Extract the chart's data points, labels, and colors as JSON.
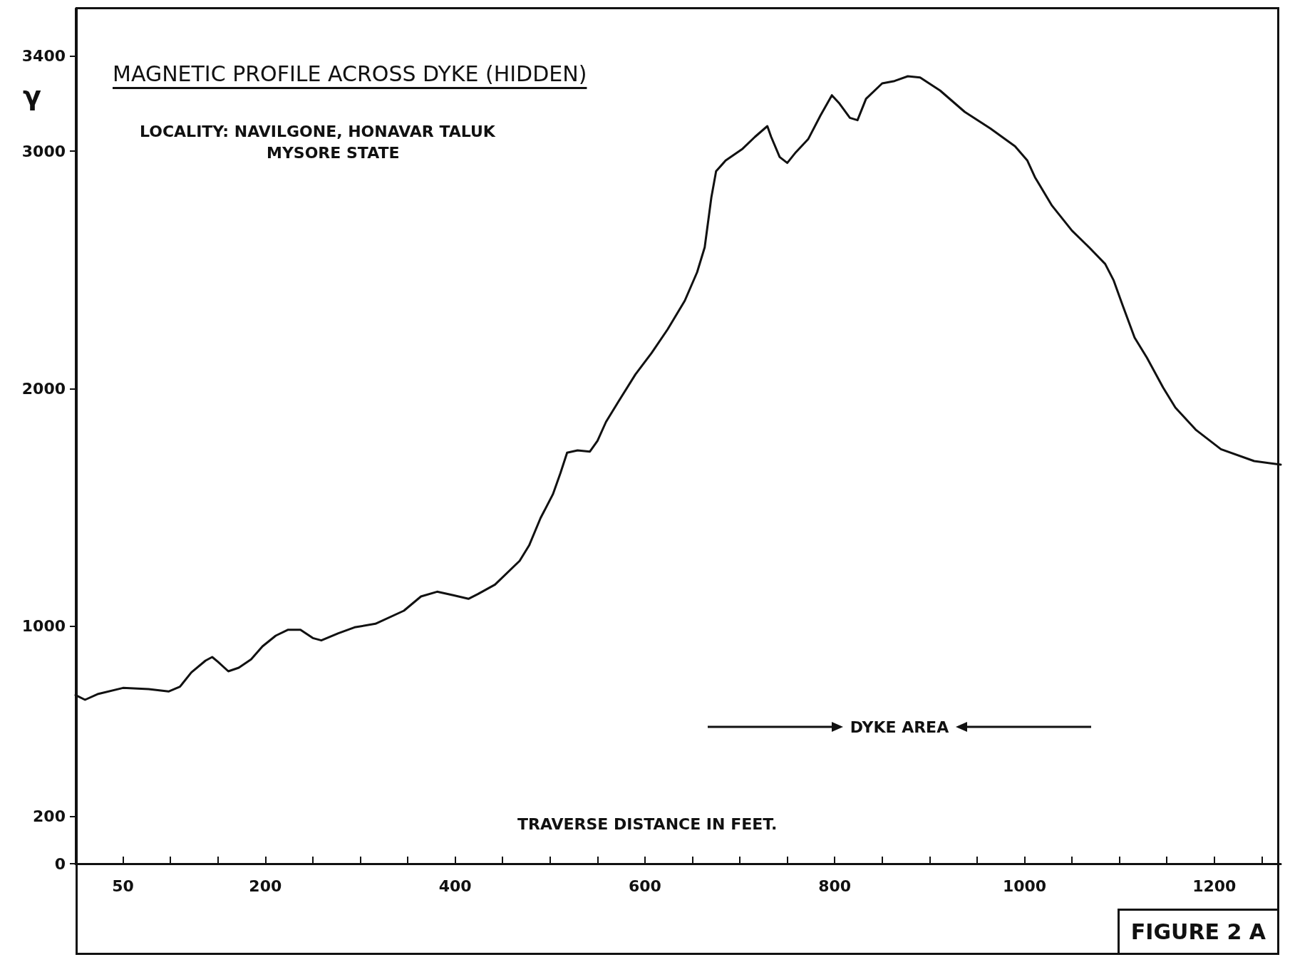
{
  "chart_data": {
    "type": "line",
    "title": "MAGNETIC PROFILE ACROSS DYKE (HIDDEN)",
    "xlabel": "TRAVERSE DISTANCE IN FEET.",
    "ylabel": "γ",
    "annotations": [
      "LOCALITY: NAVILGONE, HONAVAR TALUK",
      "MYSORE STATE",
      "DYKE AREA",
      "FIGURE 2 A"
    ],
    "x": [
      0,
      10,
      24,
      50,
      77,
      98,
      110,
      122,
      137,
      144,
      150,
      161,
      172,
      185,
      197,
      211,
      224,
      237,
      250,
      259,
      277,
      294,
      316,
      346,
      364,
      381,
      398,
      414,
      424,
      442,
      468,
      478,
      490,
      503,
      511,
      518,
      529,
      542,
      550,
      559,
      572,
      590,
      607,
      624,
      642,
      655,
      663,
      670,
      675,
      685,
      703,
      716,
      729,
      733,
      742,
      750,
      759,
      772,
      785,
      797,
      805,
      816,
      824,
      833,
      850,
      863,
      877,
      890,
      911,
      937,
      964,
      990,
      1003,
      1011,
      1029,
      1050,
      1068,
      1085,
      1094,
      1103,
      1116,
      1129,
      1146,
      1159,
      1181,
      1207,
      1242,
      1270
    ],
    "series": [
      {
        "color": "#111111",
        "values": [
          710,
          690,
          715,
          740,
          735,
          725,
          745,
          805,
          855,
          870,
          850,
          810,
          825,
          860,
          915,
          960,
          985,
          985,
          950,
          940,
          970,
          995,
          1010,
          1065,
          1125,
          1145,
          1130,
          1115,
          1135,
          1175,
          1275,
          1340,
          1455,
          1555,
          1645,
          1730,
          1740,
          1735,
          1780,
          1860,
          1945,
          2060,
          2150,
          2250,
          2370,
          2490,
          2595,
          2805,
          2915,
          2960,
          3010,
          3060,
          3105,
          3060,
          2975,
          2950,
          2995,
          3050,
          3150,
          3235,
          3200,
          3140,
          3130,
          3220,
          3285,
          3295,
          3315,
          3310,
          3255,
          3165,
          3095,
          3020,
          2960,
          2890,
          2770,
          2665,
          2595,
          2525,
          2455,
          2355,
          2215,
          2130,
          2005,
          1920,
          1825,
          1745,
          1695,
          1680
        ]
      }
    ],
    "xlim": [
      0,
      1270
    ],
    "xticks": [
      {
        "value": 0,
        "label": null
      },
      50,
      {
        "value": 100,
        "label": null
      },
      {
        "value": 150,
        "label": null
      },
      200,
      {
        "value": 250,
        "label": null
      },
      {
        "value": 300,
        "label": null
      },
      {
        "value": 350,
        "label": null
      },
      400,
      {
        "value": 450,
        "label": null
      },
      {
        "value": 500,
        "label": null
      },
      {
        "value": 550,
        "label": null
      },
      600,
      {
        "value": 650,
        "label": null
      },
      {
        "value": 700,
        "label": null
      },
      {
        "value": 750,
        "label": null
      },
      800,
      {
        "value": 850,
        "label": null
      },
      {
        "value": 900,
        "label": null
      },
      {
        "value": 950,
        "label": null
      },
      1000,
      {
        "value": 1050,
        "label": null
      },
      {
        "value": 1100,
        "label": null
      },
      {
        "value": 1150,
        "label": null
      },
      1200,
      {
        "value": 1250,
        "label": null
      }
    ],
    "ylim": [
      0,
      3600
    ],
    "yticks": [
      0,
      200,
      1000,
      2000,
      3000,
      3400
    ],
    "grid": false,
    "marker": "none",
    "line_style": "solid"
  }
}
